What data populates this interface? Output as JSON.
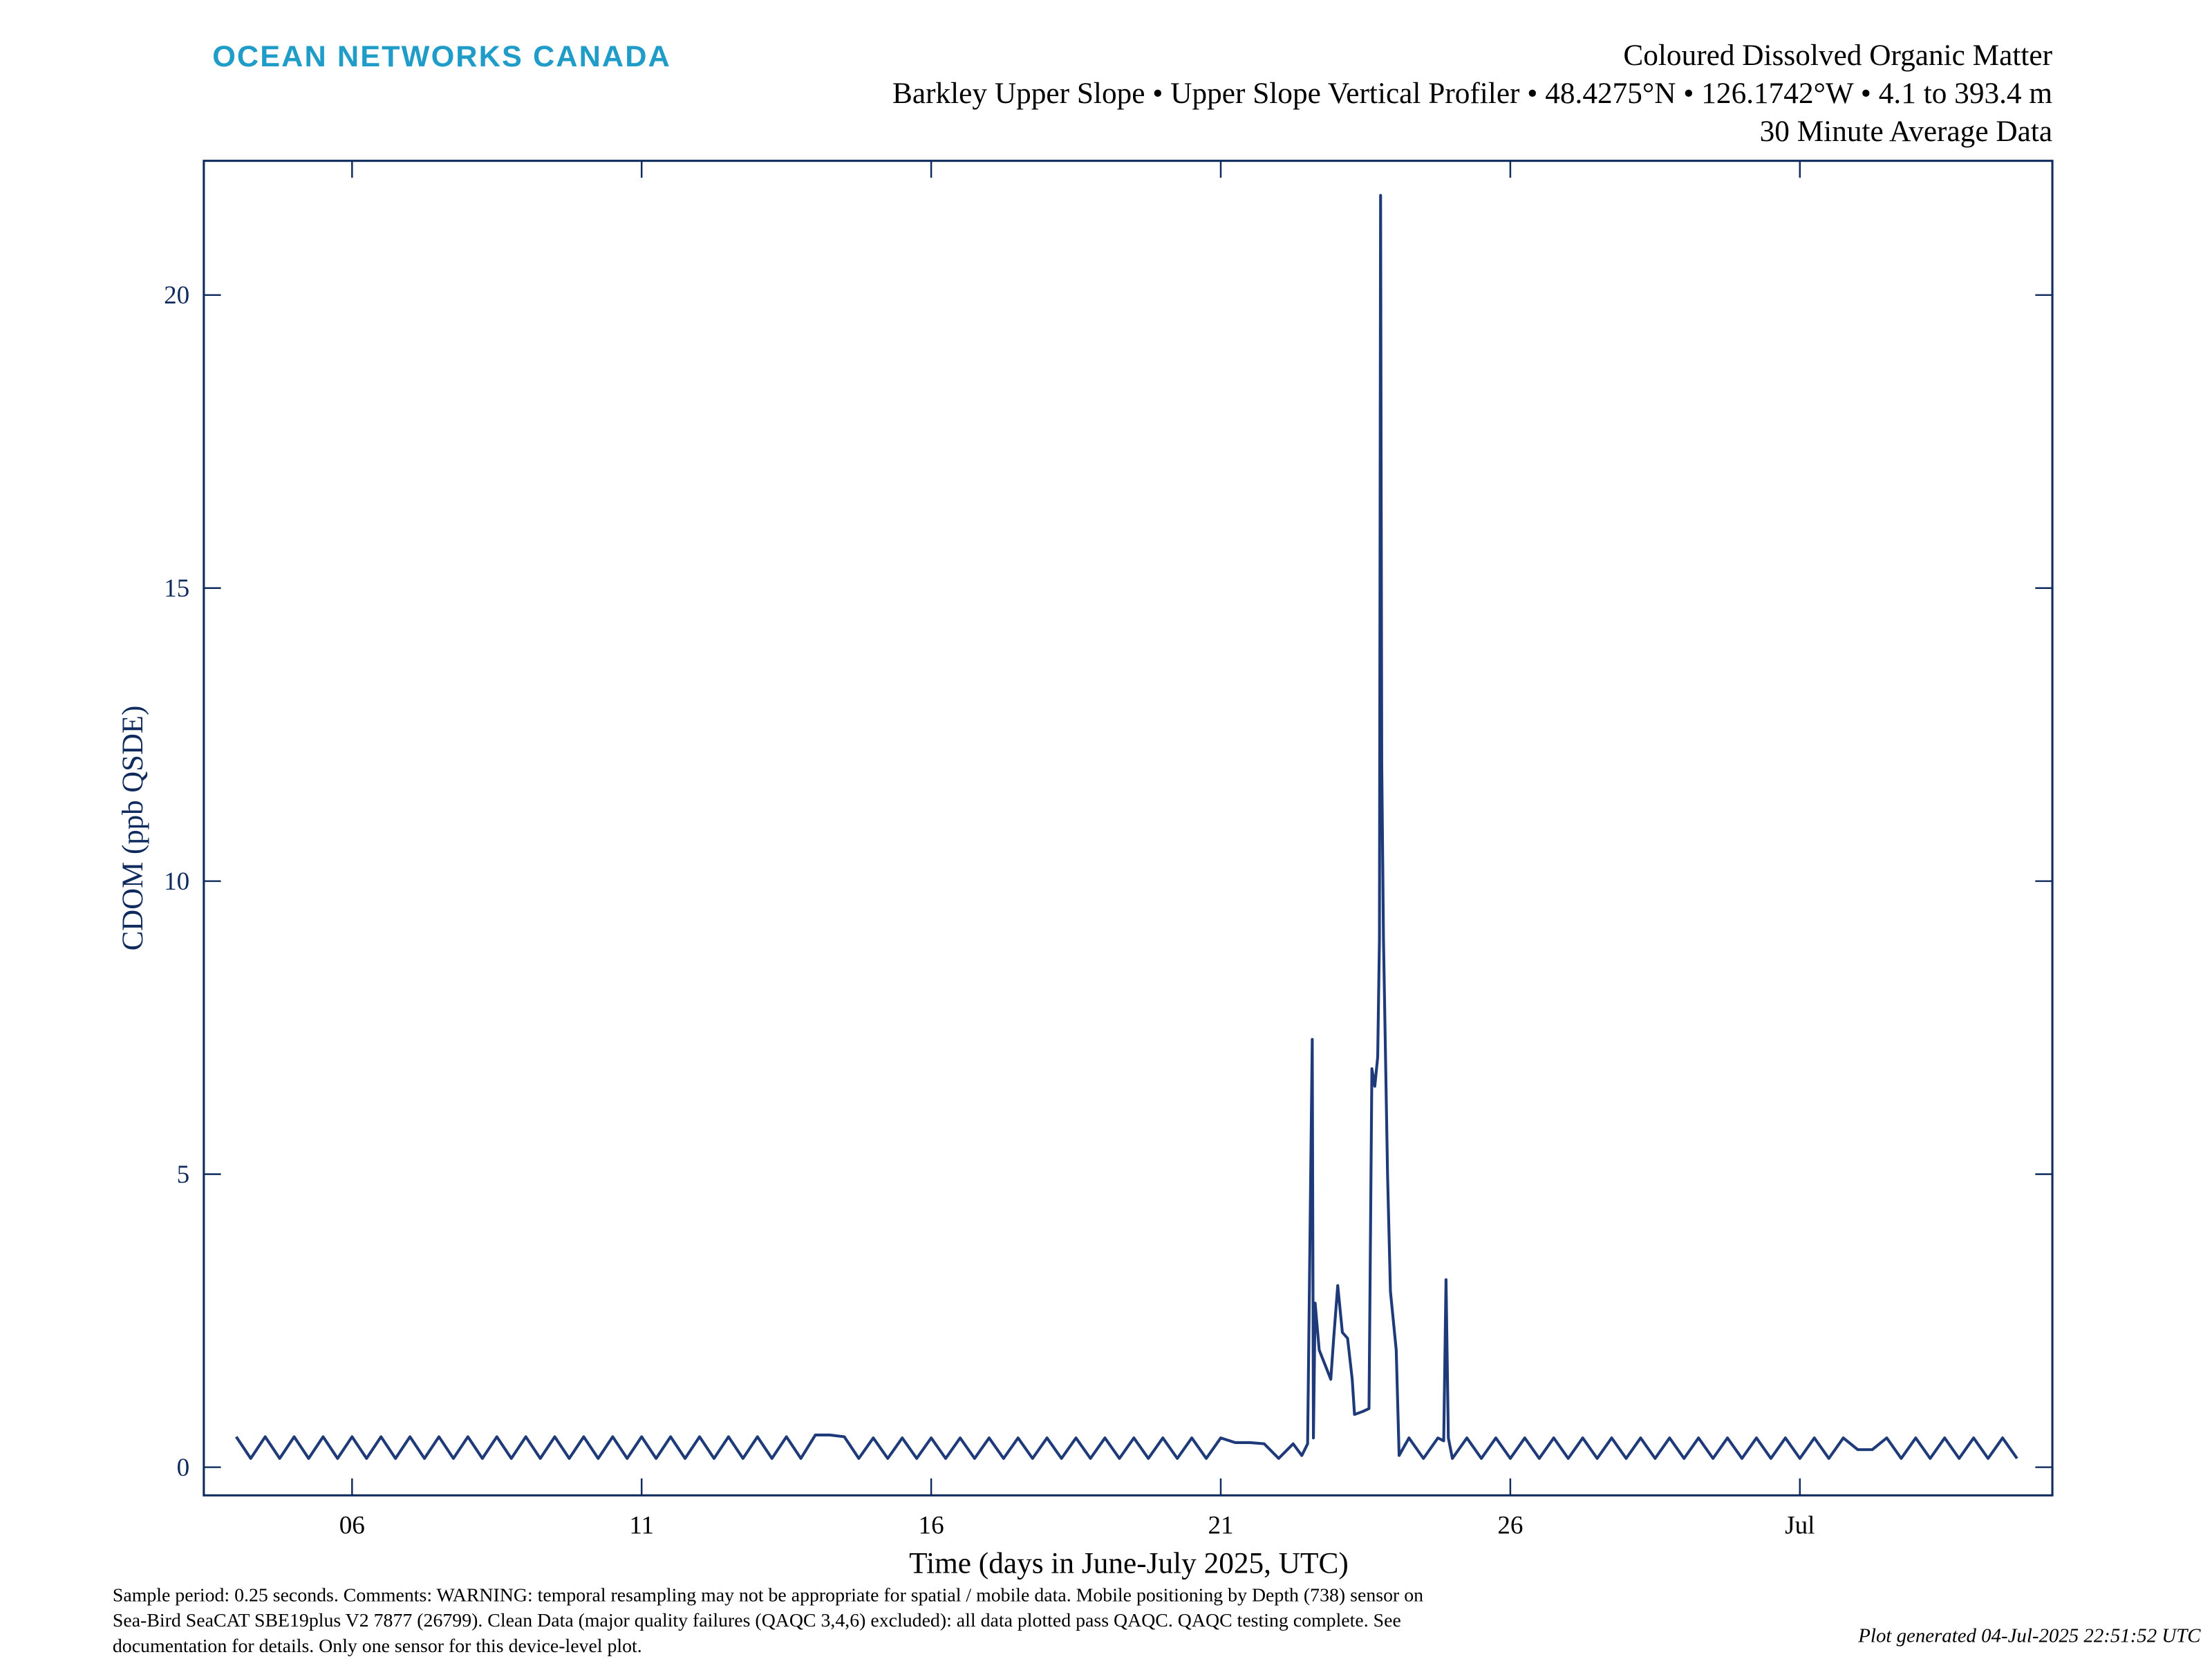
{
  "header": {
    "brand": "OCEAN NETWORKS CANADA"
  },
  "chart_data": {
    "type": "line",
    "title": "Coloured Dissolved Organic Matter",
    "subtitle": "Barkley Upper Slope • Upper Slope Vertical Profiler • 48.4275°N • 126.1742°W • 4.1 to 393.4 m",
    "subtitle2": "30 Minute Average Data",
    "x_label": "Time (days in June-July 2025, UTC)",
    "y_label": "CDOM (ppb QSDE)",
    "xlim": [
      3.44,
      35.36
    ],
    "ylim": [
      -0.48,
      22.29
    ],
    "xticks": [
      {
        "value": 6,
        "label": "06"
      },
      11,
      16,
      21,
      26,
      {
        "value": 31,
        "label": "Jul"
      }
    ],
    "yticks": [
      0,
      5,
      10,
      15,
      20
    ],
    "x": [
      4,
      4.25,
      4.5,
      4.75,
      5,
      5.25,
      5.5,
      5.75,
      6,
      6.25,
      6.5,
      6.75,
      7,
      7.25,
      7.5,
      7.75,
      8,
      8.25,
      8.5,
      8.75,
      9,
      9.25,
      9.5,
      9.75,
      10,
      10.25,
      10.5,
      10.75,
      11,
      11.25,
      11.5,
      11.75,
      12,
      12.25,
      12.5,
      12.75,
      13,
      13.25,
      13.5,
      13.75,
      14,
      14.25,
      14.5,
      14.75,
      15,
      15.25,
      15.5,
      15.75,
      16,
      16.25,
      16.5,
      16.75,
      17,
      17.25,
      17.5,
      17.75,
      18,
      18.25,
      18.5,
      18.75,
      19,
      19.25,
      19.5,
      19.75,
      20,
      20.25,
      20.5,
      20.75,
      21,
      21.25,
      21.5,
      21.75,
      22,
      22.25,
      22.4,
      22.5,
      22.58,
      22.6,
      22.63,
      22.7,
      22.82,
      22.9,
      22.95,
      23.02,
      23.1,
      23.19,
      23.27,
      23.31,
      23.45,
      23.56,
      23.61,
      23.66,
      23.71,
      23.74,
      23.76,
      23.78,
      23.81,
      23.84,
      23.88,
      23.93,
      24.03,
      24.08,
      24.25,
      24.5,
      24.75,
      24.85,
      24.89,
      24.93,
      25,
      25.25,
      25.5,
      25.75,
      26,
      26.25,
      26.5,
      26.75,
      27,
      27.25,
      27.5,
      27.75,
      28,
      28.25,
      28.5,
      28.75,
      29,
      29.25,
      29.5,
      29.75,
      30,
      30.25,
      30.5,
      30.75,
      31,
      31.25,
      31.5,
      31.75,
      32,
      32.25,
      32.5,
      32.75,
      33,
      33.25,
      33.5,
      33.75,
      34,
      34.25,
      34.5,
      34.75
    ],
    "series": [
      {
        "name": "CDOM",
        "color": "#1f3a78",
        "values": [
          0.52,
          0.15,
          0.52,
          0.15,
          0.52,
          0.15,
          0.52,
          0.15,
          0.52,
          0.15,
          0.52,
          0.15,
          0.52,
          0.15,
          0.52,
          0.15,
          0.52,
          0.15,
          0.52,
          0.15,
          0.52,
          0.15,
          0.52,
          0.15,
          0.52,
          0.15,
          0.52,
          0.15,
          0.52,
          0.15,
          0.52,
          0.15,
          0.52,
          0.15,
          0.52,
          0.15,
          0.52,
          0.15,
          0.52,
          0.15,
          0.55,
          0.55,
          0.52,
          0.15,
          0.5,
          0.15,
          0.5,
          0.15,
          0.5,
          0.15,
          0.5,
          0.15,
          0.5,
          0.15,
          0.5,
          0.15,
          0.5,
          0.15,
          0.5,
          0.15,
          0.5,
          0.15,
          0.5,
          0.15,
          0.5,
          0.15,
          0.5,
          0.15,
          0.5,
          0.42,
          0.42,
          0.4,
          0.15,
          0.4,
          0.2,
          0.4,
          7.3,
          0.5,
          2.8,
          2.0,
          1.7,
          1.5,
          2.2,
          3.1,
          2.3,
          2.2,
          1.5,
          0.9,
          0.95,
          1.0,
          6.8,
          6.5,
          7.0,
          9.0,
          21.7,
          12.0,
          9.0,
          7.3,
          5.0,
          3.0,
          2.0,
          0.2,
          0.5,
          0.15,
          0.5,
          0.45,
          3.2,
          0.5,
          0.15,
          0.5,
          0.15,
          0.5,
          0.15,
          0.5,
          0.15,
          0.5,
          0.15,
          0.5,
          0.15,
          0.5,
          0.15,
          0.5,
          0.15,
          0.5,
          0.15,
          0.5,
          0.15,
          0.5,
          0.15,
          0.5,
          0.15,
          0.5,
          0.15,
          0.5,
          0.15,
          0.5,
          0.3,
          0.3,
          0.5,
          0.15,
          0.5,
          0.15,
          0.5,
          0.15,
          0.5,
          0.15,
          0.5,
          0.15
        ]
      }
    ],
    "note": [
      "Sample period: 0.25 seconds. Comments: WARNING: temporal resampling may not be appropriate for spatial / mobile data. Mobile positioning by Depth (738) sensor on",
      "Sea-Bird SeaCAT SBE19plus V2 7877 (26799). Clean Data (major quality failures (QAQC 3,4,6) excluded): all data plotted pass QAQC. QAQC testing complete. See",
      "documentation for details. Only one sensor for this device-level plot."
    ],
    "generated": "Plot generated 04-Jul-2025 22:51:52 UTC"
  }
}
